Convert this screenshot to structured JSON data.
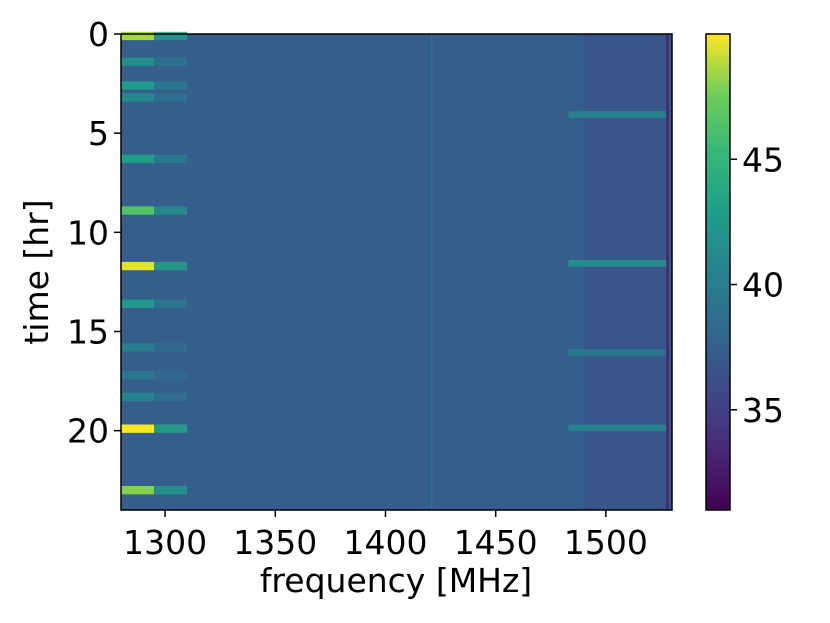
{
  "chart_data": {
    "type": "heatmap",
    "xlabel": "frequency [MHz]",
    "ylabel": "time [hr]",
    "xlim": [
      1280,
      1530
    ],
    "ylim": [
      24,
      0
    ],
    "x_ticks": [
      1300,
      1350,
      1400,
      1450,
      1500
    ],
    "y_ticks": [
      0,
      5,
      10,
      15,
      20
    ],
    "colorbar": {
      "range": [
        31,
        50
      ],
      "ticks": [
        35,
        40,
        45
      ],
      "colormap": "viridis"
    },
    "background_level": 37.3,
    "rfi_rows_low_band": [
      {
        "time": 0.1,
        "level": 48.5
      },
      {
        "time": 1.4,
        "level": 41.5
      },
      {
        "time": 2.6,
        "level": 42.5
      },
      {
        "time": 3.2,
        "level": 41.0
      },
      {
        "time": 6.3,
        "level": 43.0
      },
      {
        "time": 8.9,
        "level": 46.5
      },
      {
        "time": 11.7,
        "level": 49.5
      },
      {
        "time": 13.6,
        "level": 42.5
      },
      {
        "time": 15.8,
        "level": 40.0
      },
      {
        "time": 17.2,
        "level": 39.5
      },
      {
        "time": 18.3,
        "level": 40.5
      },
      {
        "time": 19.9,
        "level": 50.0
      },
      {
        "time": 23.0,
        "level": 48.0
      }
    ],
    "rfi_rows_high_band": [
      {
        "time": 4.1,
        "level": 41.0
      },
      {
        "time": 11.6,
        "level": 42.0
      },
      {
        "time": 16.1,
        "level": 40.0
      },
      {
        "time": 19.9,
        "level": 41.0
      }
    ],
    "vertical_features": [
      {
        "frequency": 1421,
        "level": 40.0
      },
      {
        "frequency": 1528,
        "level": 33.5
      }
    ]
  }
}
